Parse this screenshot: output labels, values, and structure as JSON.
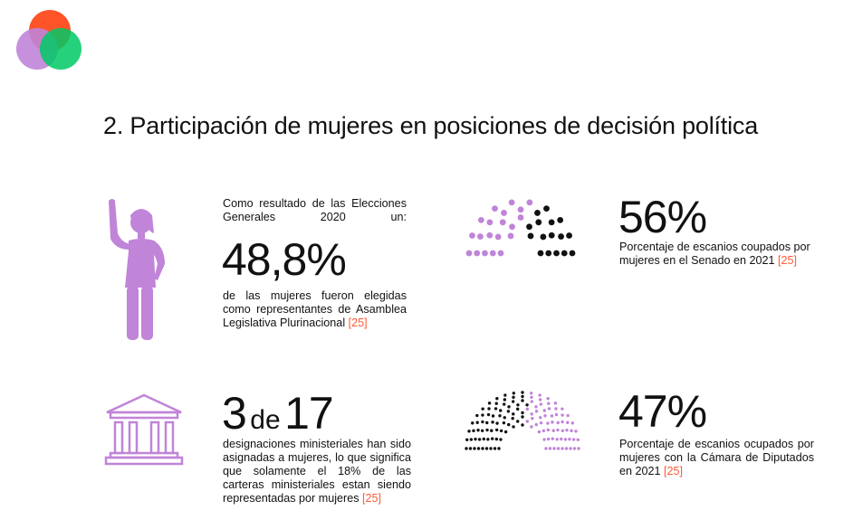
{
  "colors": {
    "purple": "#c084d8",
    "black": "#111111",
    "red": "#ff4a1c",
    "green": "#00c965",
    "ref": "#ff5a36"
  },
  "title": "2. Participación de mujeres en posiciones de decisión política",
  "block1": {
    "intro": "Como resultado de las Elecciones Generales 2020 un:",
    "value": "48,8%",
    "text": "de las mujeres fueron elegidas como representantes de Asamblea Legislativa Plurinacional",
    "ref": "[25]",
    "icon": "woman-raising-hand-icon"
  },
  "block2": {
    "value_a": "3",
    "value_de": "de",
    "value_b": "17",
    "text": "designaciones ministeriales han sido asignadas a mujeres, lo que significa que solamente el 18% de las carteras ministeriales estan siendo representadas por mujeres",
    "ref": "[25]",
    "icon": "government-building-icon"
  },
  "block3": {
    "value": "56%",
    "text": "Porcentaje de escanios coupados por mujeres en el Senado en 2021",
    "ref": "[25]",
    "women_share": 56
  },
  "block4": {
    "value": "47%",
    "text": "Porcentaje de escanios ocupados por mujeres con la Cámara de Diputados en 2021",
    "ref": "[25]",
    "women_share": 47
  }
}
